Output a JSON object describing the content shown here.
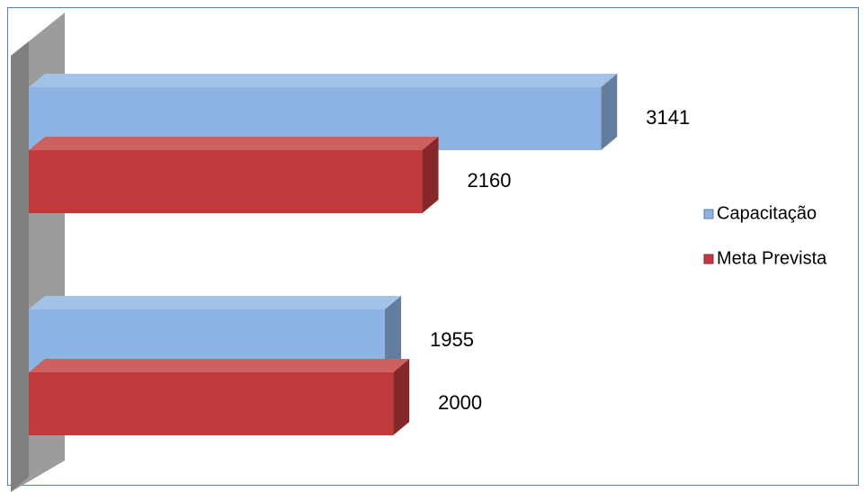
{
  "chart_data": {
    "type": "bar3d-horizontal",
    "categories": [
      null,
      null
    ],
    "series": [
      {
        "name": "Capacitação",
        "color": "#8db3e2",
        "values": [
          3141,
          1955
        ]
      },
      {
        "name": "Meta Prevista",
        "color": "#c0393b",
        "values": [
          2160,
          2000
        ]
      }
    ],
    "xlim": [
      0,
      3500
    ],
    "legend": "right"
  }
}
